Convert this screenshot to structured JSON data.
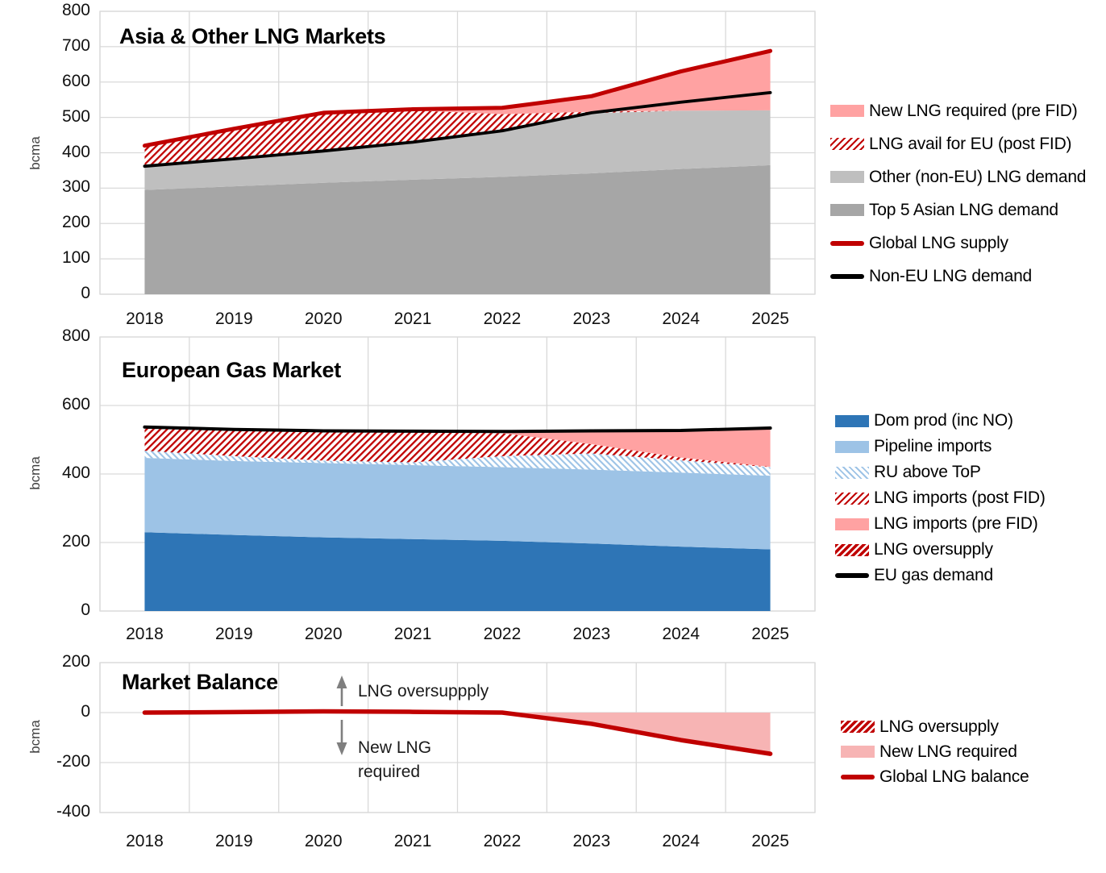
{
  "palette": {
    "red": "#c00000",
    "black": "#000000",
    "pink": "#ffa2a2",
    "pink_light": "#f7b4b4",
    "gray_dark": "#a6a6a6",
    "gray_light": "#bfbfbf",
    "blue_dark": "#2e75b6",
    "blue_light": "#9dc3e6",
    "grid": "#d9d9d9",
    "arrow": "#7f7f7f"
  },
  "chart_data": [
    {
      "id": "asia-other-lng-markets",
      "type": "area",
      "title": "Asia & Other LNG Markets",
      "ylabel": "bcma",
      "x": [
        2018,
        2019,
        2020,
        2021,
        2022,
        2023,
        2024,
        2025
      ],
      "ylim": [
        0,
        800
      ],
      "yticks": [
        0,
        100,
        200,
        300,
        400,
        500,
        600,
        700,
        800
      ],
      "grid": true,
      "legend_position": "right",
      "series": [
        {
          "name": "Top 5 Asian LNG demand",
          "kind": "band",
          "fill": "gray_dark",
          "lower": [
            0,
            0,
            0,
            0,
            0,
            0,
            0,
            0
          ],
          "upper": [
            295,
            305,
            315,
            324,
            332,
            342,
            354,
            365
          ]
        },
        {
          "name": "Other (non-EU) LNG demand",
          "kind": "band",
          "fill": "gray_light",
          "lower": [
            295,
            305,
            315,
            324,
            332,
            342,
            354,
            365
          ],
          "upper": [
            362,
            383,
            405,
            430,
            462,
            512,
            519,
            520
          ]
        },
        {
          "name": "LNG avail for EU (post FID)",
          "kind": "band",
          "fill": "hatch_red",
          "lower": [
            362,
            383,
            405,
            430,
            462,
            512,
            519,
            520
          ],
          "upper": [
            420,
            468,
            513,
            520,
            509,
            516,
            519,
            520
          ]
        },
        {
          "name": "New LNG required (pre FID)",
          "kind": "band",
          "fill": "pink",
          "lower": [
            420,
            468,
            513,
            520,
            509,
            516,
            519,
            520
          ],
          "upper": [
            420,
            468,
            513,
            523,
            527,
            560,
            630,
            688
          ]
        },
        {
          "name": "Non-EU LNG demand",
          "kind": "line",
          "color": "black",
          "width": 3.8,
          "values": [
            362,
            383,
            405,
            430,
            462,
            513,
            543,
            570
          ]
        },
        {
          "name": "Global LNG supply",
          "kind": "line",
          "color": "red",
          "width": 5,
          "values": [
            420,
            468,
            513,
            523,
            527,
            560,
            630,
            688
          ]
        }
      ],
      "legend": [
        {
          "label": "New LNG required (pre FID)",
          "swatch": "fill",
          "color": "pink"
        },
        {
          "label": "LNG avail for EU (post FID)",
          "swatch": "hatch_red"
        },
        {
          "label": "Other (non-EU) LNG demand",
          "swatch": "fill",
          "color": "gray_light"
        },
        {
          "label": "Top 5 Asian LNG demand",
          "swatch": "fill",
          "color": "gray_dark"
        },
        {
          "label": "Global LNG supply",
          "swatch": "line",
          "color": "red"
        },
        {
          "label": "Non-EU LNG demand",
          "swatch": "line",
          "color": "black"
        }
      ]
    },
    {
      "id": "european-gas-market",
      "type": "area",
      "title": "European Gas Market",
      "ylabel": "bcma",
      "x": [
        2018,
        2019,
        2020,
        2021,
        2022,
        2023,
        2024,
        2025
      ],
      "ylim": [
        0,
        800
      ],
      "yticks": [
        0,
        200,
        400,
        600,
        800
      ],
      "grid": true,
      "legend_position": "right",
      "series": [
        {
          "name": "Dom prod (inc NO)",
          "kind": "band",
          "fill": "blue_dark",
          "lower": [
            0,
            0,
            0,
            0,
            0,
            0,
            0,
            0
          ],
          "upper": [
            230,
            222,
            215,
            210,
            205,
            197,
            188,
            180
          ]
        },
        {
          "name": "Pipeline imports",
          "kind": "band",
          "fill": "blue_light",
          "lower": [
            230,
            222,
            215,
            210,
            205,
            197,
            188,
            180
          ],
          "upper": [
            447,
            438,
            432,
            426,
            420,
            413,
            404,
            395
          ]
        },
        {
          "name": "RU above ToP",
          "kind": "band",
          "fill": "hatch_blue",
          "lower": [
            447,
            438,
            432,
            426,
            420,
            413,
            404,
            395
          ],
          "upper": [
            468,
            452,
            439,
            434,
            452,
            460,
            440,
            420
          ]
        },
        {
          "name": "LNG imports (post FID)",
          "kind": "band",
          "fill": "hatch_red",
          "lower": [
            468,
            452,
            439,
            434,
            452,
            460,
            440,
            420
          ],
          "upper": [
            532,
            527,
            524,
            523,
            519,
            487,
            448,
            421
          ]
        },
        {
          "name": "LNG imports (pre FID)",
          "kind": "band",
          "fill": "pink",
          "lower": [
            532,
            527,
            524,
            523,
            519,
            487,
            448,
            421
          ],
          "upper": [
            532,
            527,
            524,
            523,
            524,
            526,
            527,
            534
          ]
        },
        {
          "name": "LNG oversupply",
          "kind": "band",
          "fill": "hatch_red_dense",
          "lower": [
            532,
            527,
            524,
            523,
            524,
            526,
            527,
            534
          ],
          "upper": [
            537,
            530,
            526,
            525,
            524,
            526,
            527,
            534
          ]
        },
        {
          "name": "EU gas demand",
          "kind": "line",
          "color": "black",
          "width": 4,
          "values": [
            537,
            530,
            526,
            525,
            524,
            526,
            527,
            534
          ]
        }
      ],
      "legend": [
        {
          "label": "Dom prod (inc NO)",
          "swatch": "fill",
          "color": "blue_dark"
        },
        {
          "label": "Pipeline imports",
          "swatch": "fill",
          "color": "blue_light"
        },
        {
          "label": "RU above ToP",
          "swatch": "hatch_blue"
        },
        {
          "label": "LNG imports (post FID)",
          "swatch": "hatch_red"
        },
        {
          "label": "LNG imports (pre FID)",
          "swatch": "fill",
          "color": "pink"
        },
        {
          "label": "LNG oversupply",
          "swatch": "hatch_red_dense"
        },
        {
          "label": "EU gas demand",
          "swatch": "line",
          "color": "black"
        }
      ]
    },
    {
      "id": "market-balance",
      "type": "area",
      "title": "Market Balance",
      "ylabel": "bcma",
      "x": [
        2018,
        2019,
        2020,
        2021,
        2022,
        2023,
        2024,
        2025
      ],
      "ylim": [
        -400,
        200
      ],
      "yticks": [
        -400,
        -200,
        0,
        200
      ],
      "grid": true,
      "legend_position": "right",
      "annotations": {
        "up_label": "LNG oversuppply",
        "down_label_line1": "New LNG",
        "down_label_line2": "required"
      },
      "series": [
        {
          "name": "LNG oversupply",
          "kind": "band",
          "fill": "hatch_red_dense",
          "lower": [
            0,
            0,
            0,
            0,
            0,
            0,
            0,
            0
          ],
          "upper": [
            0,
            2,
            5,
            3,
            0,
            0,
            0,
            0
          ]
        },
        {
          "name": "New LNG required",
          "kind": "band",
          "fill": "pink_light",
          "lower": [
            0,
            0,
            0,
            0,
            0,
            -45,
            -110,
            -165
          ],
          "upper": [
            0,
            0,
            0,
            0,
            0,
            0,
            0,
            0
          ]
        },
        {
          "name": "Global LNG balance",
          "kind": "line",
          "color": "red",
          "width": 5.5,
          "values": [
            0,
            2,
            5,
            3,
            0,
            -45,
            -110,
            -165
          ]
        }
      ],
      "legend": [
        {
          "label": "LNG oversupply",
          "swatch": "hatch_red_dense"
        },
        {
          "label": "New LNG required",
          "swatch": "fill",
          "color": "pink_light"
        },
        {
          "label": "Global LNG balance",
          "swatch": "line",
          "color": "red"
        }
      ]
    }
  ]
}
